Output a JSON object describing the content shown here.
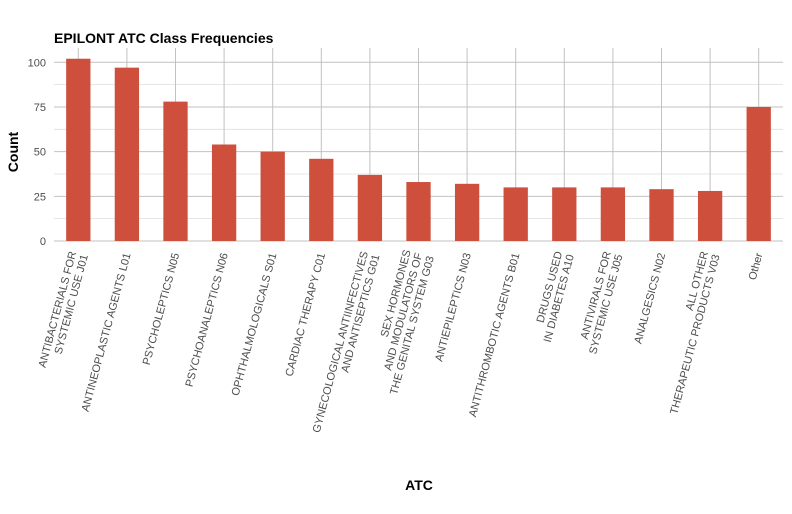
{
  "chart_data": {
    "type": "bar",
    "title": "EPILONT ATC Class Frequencies",
    "xlabel": "ATC",
    "ylabel": "Count",
    "ylim": [
      0,
      108
    ],
    "yticks": [
      0,
      25,
      50,
      75,
      100
    ],
    "grid": true,
    "bar_color": "#cd4f3c",
    "categories": [
      [
        "ANTIBACTERIALS FOR",
        "SYSTEMIC USE J01"
      ],
      [
        "ANTINEOPLASTIC AGENTS L01"
      ],
      [
        "PSYCHOLEPTICS N05"
      ],
      [
        "PSYCHOANALEPTICS N06"
      ],
      [
        "OPHTHALMOLOGICALS S01"
      ],
      [
        "CARDIAC THERAPY C01"
      ],
      [
        "GYNECOLOGICAL ANTIINFECTIVES",
        "AND ANTISEPTICS G01"
      ],
      [
        "SEX HORMONES",
        "AND MODULATORS OF",
        "THE GENITAL SYSTEM G03"
      ],
      [
        "ANTIEPILEPTICS N03"
      ],
      [
        "ANTITHROMBOTIC AGENTS B01"
      ],
      [
        "DRUGS USED",
        "IN DIABETES A10"
      ],
      [
        "ANTIVIRALS FOR",
        "SYSTEMIC USE J05"
      ],
      [
        "ANALGESICS N02"
      ],
      [
        "ALL OTHER",
        "THERAPEUTIC PRODUCTS V03"
      ],
      [
        "Other"
      ]
    ],
    "values": [
      102,
      97,
      78,
      54,
      50,
      46,
      37,
      33,
      32,
      30,
      30,
      30,
      29,
      28,
      75
    ]
  }
}
